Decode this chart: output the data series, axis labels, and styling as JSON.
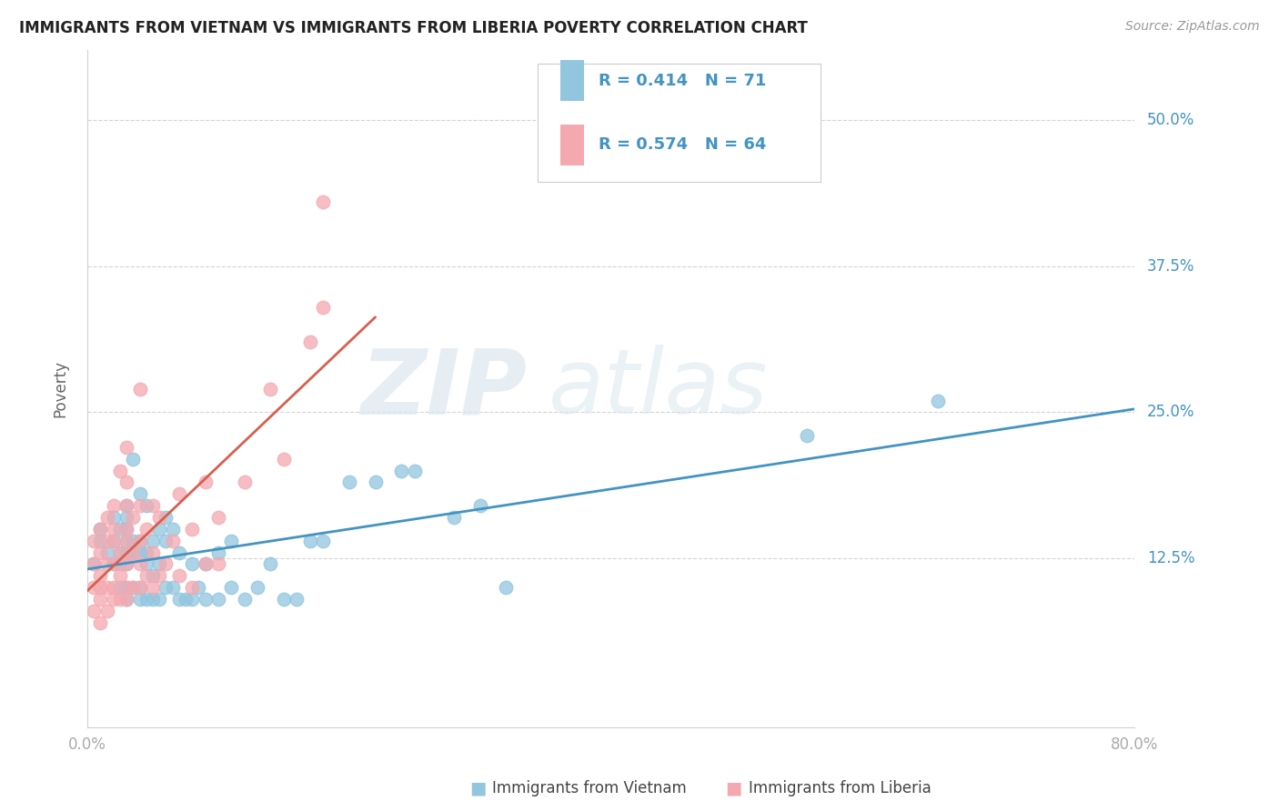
{
  "title": "IMMIGRANTS FROM VIETNAM VS IMMIGRANTS FROM LIBERIA POVERTY CORRELATION CHART",
  "source": "Source: ZipAtlas.com",
  "ylabel": "Poverty",
  "ytick_labels": [
    "12.5%",
    "25.0%",
    "37.5%",
    "50.0%"
  ],
  "ytick_values": [
    0.125,
    0.25,
    0.375,
    0.5
  ],
  "xlim": [
    0.0,
    0.8
  ],
  "ylim": [
    -0.02,
    0.56
  ],
  "xtick_positions": [
    0.0,
    0.2,
    0.4,
    0.6,
    0.8
  ],
  "xtick_labels": [
    "0.0%",
    "",
    "",
    "",
    "80.0%"
  ],
  "legend_r1": "R = 0.414",
  "legend_n1": "N = 71",
  "legend_r2": "R = 0.574",
  "legend_n2": "N = 64",
  "color_vietnam": "#92c5de",
  "color_liberia": "#f4a9b0",
  "trendline_color_vietnam": "#4393c3",
  "trendline_color_liberia": "#d6604d",
  "watermark_zip": "ZIP",
  "watermark_atlas": "atlas",
  "background_color": "#ffffff",
  "legend_box_color": "#f5f5f5",
  "legend_text_color": "#4393c3",
  "right_tick_color": "#4393c3",
  "vietnam_x": [
    0.005,
    0.01,
    0.01,
    0.015,
    0.02,
    0.02,
    0.02,
    0.025,
    0.025,
    0.025,
    0.025,
    0.03,
    0.03,
    0.03,
    0.03,
    0.03,
    0.03,
    0.03,
    0.03,
    0.035,
    0.035,
    0.035,
    0.035,
    0.04,
    0.04,
    0.04,
    0.04,
    0.04,
    0.045,
    0.045,
    0.045,
    0.045,
    0.05,
    0.05,
    0.05,
    0.055,
    0.055,
    0.055,
    0.06,
    0.06,
    0.06,
    0.065,
    0.065,
    0.07,
    0.07,
    0.075,
    0.08,
    0.08,
    0.085,
    0.09,
    0.09,
    0.1,
    0.1,
    0.11,
    0.11,
    0.12,
    0.13,
    0.14,
    0.15,
    0.16,
    0.17,
    0.18,
    0.2,
    0.22,
    0.24,
    0.25,
    0.28,
    0.3,
    0.32,
    0.55,
    0.65
  ],
  "vietnam_y": [
    0.12,
    0.14,
    0.15,
    0.13,
    0.12,
    0.14,
    0.16,
    0.1,
    0.12,
    0.13,
    0.15,
    0.09,
    0.1,
    0.12,
    0.13,
    0.14,
    0.15,
    0.16,
    0.17,
    0.1,
    0.13,
    0.14,
    0.21,
    0.09,
    0.1,
    0.13,
    0.14,
    0.18,
    0.09,
    0.12,
    0.13,
    0.17,
    0.09,
    0.11,
    0.14,
    0.09,
    0.12,
    0.15,
    0.1,
    0.14,
    0.16,
    0.1,
    0.15,
    0.09,
    0.13,
    0.09,
    0.09,
    0.12,
    0.1,
    0.09,
    0.12,
    0.09,
    0.13,
    0.1,
    0.14,
    0.09,
    0.1,
    0.12,
    0.09,
    0.09,
    0.14,
    0.14,
    0.19,
    0.19,
    0.2,
    0.2,
    0.16,
    0.17,
    0.1,
    0.23,
    0.26
  ],
  "liberia_x": [
    0.005,
    0.005,
    0.005,
    0.005,
    0.01,
    0.01,
    0.01,
    0.01,
    0.01,
    0.01,
    0.015,
    0.015,
    0.015,
    0.015,
    0.015,
    0.02,
    0.02,
    0.02,
    0.02,
    0.02,
    0.02,
    0.025,
    0.025,
    0.025,
    0.025,
    0.03,
    0.03,
    0.03,
    0.03,
    0.03,
    0.03,
    0.03,
    0.03,
    0.035,
    0.035,
    0.035,
    0.04,
    0.04,
    0.04,
    0.04,
    0.04,
    0.045,
    0.045,
    0.05,
    0.05,
    0.05,
    0.055,
    0.055,
    0.06,
    0.065,
    0.07,
    0.07,
    0.08,
    0.08,
    0.09,
    0.09,
    0.1,
    0.1,
    0.12,
    0.14,
    0.15,
    0.17,
    0.18,
    0.18
  ],
  "liberia_y": [
    0.08,
    0.1,
    0.12,
    0.14,
    0.07,
    0.09,
    0.1,
    0.11,
    0.13,
    0.15,
    0.08,
    0.1,
    0.12,
    0.14,
    0.16,
    0.09,
    0.1,
    0.12,
    0.14,
    0.15,
    0.17,
    0.09,
    0.11,
    0.13,
    0.2,
    0.09,
    0.1,
    0.12,
    0.14,
    0.15,
    0.17,
    0.19,
    0.22,
    0.1,
    0.13,
    0.16,
    0.1,
    0.12,
    0.14,
    0.17,
    0.27,
    0.11,
    0.15,
    0.1,
    0.13,
    0.17,
    0.11,
    0.16,
    0.12,
    0.14,
    0.11,
    0.18,
    0.1,
    0.15,
    0.12,
    0.19,
    0.12,
    0.16,
    0.19,
    0.27,
    0.21,
    0.31,
    0.34,
    0.43
  ]
}
